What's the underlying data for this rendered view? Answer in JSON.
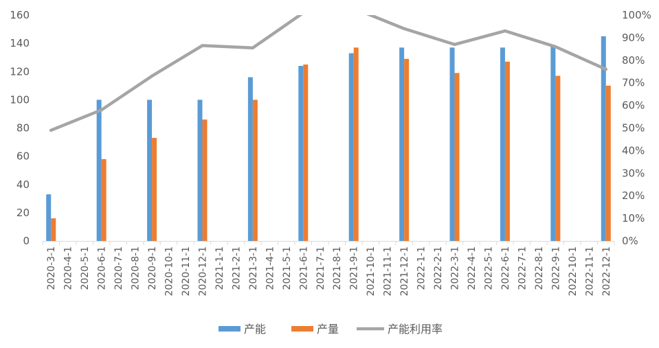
{
  "chart_data": {
    "type": "bar",
    "categories": [
      "2020-3-1",
      "2020-4-1",
      "2020-5-1",
      "2020-6-1",
      "2020-7-1",
      "2020-8-1",
      "2020-9-1",
      "2020-10-1",
      "2020-11-1",
      "2020-12-1",
      "2021-1-1",
      "2021-2-1",
      "2021-3-1",
      "2021-4-1",
      "2021-5-1",
      "2021-6-1",
      "2021-7-1",
      "2021-8-1",
      "2021-9-1",
      "2021-10-1",
      "2021-11-1",
      "2021-12-1",
      "2022-1-1",
      "2022-2-1",
      "2022-3-1",
      "2022-4-1",
      "2022-5-1",
      "2022-6-1",
      "2022-7-1",
      "2022-8-1",
      "2022-9-1",
      "2022-10-1",
      "2022-11-1",
      "2022-12-1"
    ],
    "series": [
      {
        "name": "产能",
        "type": "bar",
        "axis": "left",
        "color": "#5B9BD5",
        "values": [
          33,
          null,
          null,
          100,
          null,
          null,
          100,
          null,
          null,
          100,
          null,
          null,
          116,
          null,
          null,
          124,
          null,
          null,
          133,
          null,
          null,
          137,
          null,
          null,
          137,
          null,
          null,
          137,
          null,
          null,
          138,
          null,
          null,
          145
        ]
      },
      {
        "name": "产量",
        "type": "bar",
        "axis": "left",
        "color": "#ED7D31",
        "values": [
          16,
          null,
          null,
          58,
          null,
          null,
          73,
          null,
          null,
          86,
          null,
          null,
          100,
          null,
          null,
          125,
          null,
          null,
          137,
          null,
          null,
          129,
          null,
          null,
          119,
          null,
          null,
          127,
          null,
          null,
          117,
          null,
          null,
          110
        ]
      },
      {
        "name": "产能利用率",
        "type": "line",
        "axis": "right",
        "color": "#A5A5A5",
        "x": [
          "2020-3-1",
          "2020-6-1",
          "2020-9-1",
          "2020-12-1",
          "2021-3-1",
          "2021-6-1",
          "2021-9-1",
          "2021-12-1",
          "2022-3-1",
          "2022-6-1",
          "2022-9-1",
          "2022-12-1"
        ],
        "values": [
          49,
          58,
          73,
          86.5,
          85.5,
          101,
          103,
          94,
          87,
          93,
          86,
          76
        ]
      }
    ],
    "yleft": {
      "min": 0,
      "max": 160,
      "step": 20,
      "ticks": [
        "0",
        "20",
        "40",
        "60",
        "80",
        "100",
        "120",
        "140",
        "160"
      ]
    },
    "yright": {
      "min": 0,
      "max": 100,
      "step": 10,
      "ticks": [
        "0%",
        "10%",
        "20%",
        "30%",
        "40%",
        "50%",
        "60%",
        "70%",
        "80%",
        "90%",
        "100%"
      ]
    },
    "grid": false,
    "legend": {
      "position": "bottom",
      "items": [
        "产能",
        "产量",
        "产能利用率"
      ]
    }
  }
}
